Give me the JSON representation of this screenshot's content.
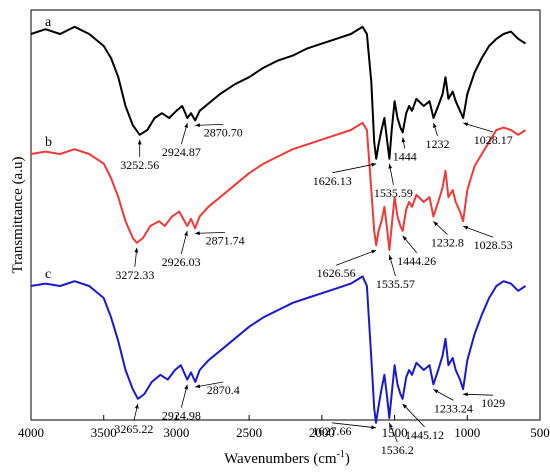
{
  "chart_data": {
    "type": "line",
    "xlabel": "Wavenumbers (cm",
    "xlabel_sup": "-1",
    "xlabel_close": ")",
    "ylabel": "Transmittance (a.u)",
    "xlim": [
      4000,
      500
    ],
    "x_reversed": true,
    "xticks": [
      4000,
      3500,
      3000,
      2500,
      2000,
      1500,
      1000,
      500
    ],
    "yticks": [],
    "grid": false,
    "series": [
      {
        "name": "a",
        "color": "#000000",
        "points": [
          [
            4000,
            0.9
          ],
          [
            3900,
            0.92
          ],
          [
            3800,
            0.9
          ],
          [
            3700,
            0.93
          ],
          [
            3600,
            0.9
          ],
          [
            3500,
            0.85
          ],
          [
            3450,
            0.8
          ],
          [
            3400,
            0.72
          ],
          [
            3350,
            0.6
          ],
          [
            3300,
            0.52
          ],
          [
            3252.56,
            0.48
          ],
          [
            3200,
            0.5
          ],
          [
            3150,
            0.55
          ],
          [
            3100,
            0.57
          ],
          [
            3050,
            0.55
          ],
          [
            3000,
            0.58
          ],
          [
            2960,
            0.6
          ],
          [
            2924.87,
            0.55
          ],
          [
            2900,
            0.57
          ],
          [
            2870.7,
            0.54
          ],
          [
            2840,
            0.58
          ],
          [
            2800,
            0.6
          ],
          [
            2700,
            0.65
          ],
          [
            2600,
            0.69
          ],
          [
            2500,
            0.72
          ],
          [
            2400,
            0.76
          ],
          [
            2300,
            0.79
          ],
          [
            2200,
            0.81
          ],
          [
            2100,
            0.84
          ],
          [
            2000,
            0.86
          ],
          [
            1900,
            0.88
          ],
          [
            1800,
            0.9
          ],
          [
            1720,
            0.93
          ],
          [
            1690,
            0.9
          ],
          [
            1660,
            0.7
          ],
          [
            1640,
            0.45
          ],
          [
            1626.13,
            0.38
          ],
          [
            1610,
            0.44
          ],
          [
            1590,
            0.5
          ],
          [
            1570,
            0.55
          ],
          [
            1550,
            0.45
          ],
          [
            1535.59,
            0.38
          ],
          [
            1520,
            0.5
          ],
          [
            1500,
            0.62
          ],
          [
            1480,
            0.55
          ],
          [
            1460,
            0.51
          ],
          [
            1444,
            0.49
          ],
          [
            1420,
            0.57
          ],
          [
            1400,
            0.6
          ],
          [
            1380,
            0.58
          ],
          [
            1350,
            0.63
          ],
          [
            1300,
            0.6
          ],
          [
            1260,
            0.62
          ],
          [
            1232,
            0.55
          ],
          [
            1200,
            0.6
          ],
          [
            1170,
            0.65
          ],
          [
            1150,
            0.72
          ],
          [
            1130,
            0.63
          ],
          [
            1100,
            0.66
          ],
          [
            1080,
            0.62
          ],
          [
            1050,
            0.58
          ],
          [
            1028.17,
            0.55
          ],
          [
            1000,
            0.65
          ],
          [
            950,
            0.74
          ],
          [
            900,
            0.8
          ],
          [
            850,
            0.85
          ],
          [
            800,
            0.88
          ],
          [
            750,
            0.9
          ],
          [
            700,
            0.91
          ],
          [
            650,
            0.88
          ],
          [
            600,
            0.86
          ]
        ]
      },
      {
        "name": "b",
        "color": "#ee3a3a",
        "points": [
          [
            4000,
            0.4
          ],
          [
            3900,
            0.41
          ],
          [
            3800,
            0.4
          ],
          [
            3700,
            0.42
          ],
          [
            3600,
            0.4
          ],
          [
            3500,
            0.36
          ],
          [
            3450,
            0.3
          ],
          [
            3400,
            0.22
          ],
          [
            3350,
            0.12
          ],
          [
            3300,
            0.05
          ],
          [
            3272.33,
            0.03
          ],
          [
            3230,
            0.05
          ],
          [
            3180,
            0.1
          ],
          [
            3120,
            0.12
          ],
          [
            3080,
            0.1
          ],
          [
            3030,
            0.14
          ],
          [
            2980,
            0.16
          ],
          [
            2926.03,
            0.1
          ],
          [
            2900,
            0.13
          ],
          [
            2871.74,
            0.09
          ],
          [
            2840,
            0.14
          ],
          [
            2780,
            0.18
          ],
          [
            2700,
            0.22
          ],
          [
            2600,
            0.27
          ],
          [
            2500,
            0.32
          ],
          [
            2400,
            0.36
          ],
          [
            2300,
            0.39
          ],
          [
            2200,
            0.42
          ],
          [
            2100,
            0.44
          ],
          [
            2000,
            0.46
          ],
          [
            1900,
            0.48
          ],
          [
            1800,
            0.5
          ],
          [
            1720,
            0.53
          ],
          [
            1690,
            0.5
          ],
          [
            1660,
            0.25
          ],
          [
            1640,
            0.08
          ],
          [
            1626.56,
            0.02
          ],
          [
            1610,
            0.08
          ],
          [
            1590,
            0.12
          ],
          [
            1570,
            0.18
          ],
          [
            1550,
            0.08
          ],
          [
            1535.57,
            0.0
          ],
          [
            1520,
            0.1
          ],
          [
            1500,
            0.22
          ],
          [
            1480,
            0.14
          ],
          [
            1460,
            0.1
          ],
          [
            1444.26,
            0.08
          ],
          [
            1420,
            0.17
          ],
          [
            1400,
            0.2
          ],
          [
            1380,
            0.18
          ],
          [
            1350,
            0.23
          ],
          [
            1300,
            0.2
          ],
          [
            1260,
            0.22
          ],
          [
            1232.8,
            0.14
          ],
          [
            1200,
            0.2
          ],
          [
            1170,
            0.26
          ],
          [
            1150,
            0.33
          ],
          [
            1130,
            0.22
          ],
          [
            1100,
            0.25
          ],
          [
            1080,
            0.2
          ],
          [
            1050,
            0.16
          ],
          [
            1028.53,
            0.12
          ],
          [
            1000,
            0.25
          ],
          [
            950,
            0.35
          ],
          [
            900,
            0.4
          ],
          [
            850,
            0.45
          ],
          [
            800,
            0.5
          ],
          [
            750,
            0.51
          ],
          [
            700,
            0.5
          ],
          [
            650,
            0.48
          ],
          [
            600,
            0.5
          ]
        ]
      },
      {
        "name": "c",
        "color": "#1a1acc",
        "points": [
          [
            4000,
            -0.15
          ],
          [
            3900,
            -0.14
          ],
          [
            3800,
            -0.15
          ],
          [
            3700,
            -0.13
          ],
          [
            3600,
            -0.15
          ],
          [
            3500,
            -0.2
          ],
          [
            3450,
            -0.28
          ],
          [
            3400,
            -0.38
          ],
          [
            3350,
            -0.5
          ],
          [
            3300,
            -0.58
          ],
          [
            3265.22,
            -0.62
          ],
          [
            3220,
            -0.6
          ],
          [
            3170,
            -0.55
          ],
          [
            3110,
            -0.52
          ],
          [
            3060,
            -0.54
          ],
          [
            3010,
            -0.5
          ],
          [
            2970,
            -0.48
          ],
          [
            2924.98,
            -0.54
          ],
          [
            2900,
            -0.51
          ],
          [
            2870.4,
            -0.55
          ],
          [
            2840,
            -0.5
          ],
          [
            2780,
            -0.46
          ],
          [
            2700,
            -0.42
          ],
          [
            2600,
            -0.37
          ],
          [
            2500,
            -0.32
          ],
          [
            2400,
            -0.28
          ],
          [
            2300,
            -0.25
          ],
          [
            2200,
            -0.22
          ],
          [
            2100,
            -0.2
          ],
          [
            2000,
            -0.18
          ],
          [
            1900,
            -0.16
          ],
          [
            1800,
            -0.14
          ],
          [
            1720,
            -0.11
          ],
          [
            1690,
            -0.15
          ],
          [
            1660,
            -0.45
          ],
          [
            1640,
            -0.66
          ],
          [
            1627.66,
            -0.72
          ],
          [
            1610,
            -0.65
          ],
          [
            1590,
            -0.58
          ],
          [
            1570,
            -0.52
          ],
          [
            1550,
            -0.62
          ],
          [
            1536.2,
            -0.7
          ],
          [
            1520,
            -0.6
          ],
          [
            1500,
            -0.48
          ],
          [
            1480,
            -0.56
          ],
          [
            1460,
            -0.6
          ],
          [
            1445.12,
            -0.62
          ],
          [
            1420,
            -0.53
          ],
          [
            1400,
            -0.5
          ],
          [
            1380,
            -0.52
          ],
          [
            1350,
            -0.47
          ],
          [
            1300,
            -0.5
          ],
          [
            1260,
            -0.48
          ],
          [
            1233.24,
            -0.56
          ],
          [
            1200,
            -0.5
          ],
          [
            1170,
            -0.44
          ],
          [
            1150,
            -0.37
          ],
          [
            1130,
            -0.48
          ],
          [
            1100,
            -0.45
          ],
          [
            1080,
            -0.5
          ],
          [
            1050,
            -0.54
          ],
          [
            1029,
            -0.58
          ],
          [
            1000,
            -0.46
          ],
          [
            950,
            -0.35
          ],
          [
            900,
            -0.27
          ],
          [
            850,
            -0.2
          ],
          [
            800,
            -0.15
          ],
          [
            750,
            -0.13
          ],
          [
            700,
            -0.14
          ],
          [
            650,
            -0.17
          ],
          [
            600,
            -0.15
          ]
        ]
      }
    ],
    "annotations": [
      {
        "series": "a",
        "text": "3252.56",
        "x": 3252.56
      },
      {
        "series": "a",
        "text": "2924.87",
        "x": 2924.87
      },
      {
        "series": "a",
        "text": "2870.70",
        "x": 2870.7
      },
      {
        "series": "a",
        "text": "1626.13",
        "x": 1626.13
      },
      {
        "series": "a",
        "text": "1535.59",
        "x": 1535.59
      },
      {
        "series": "a",
        "text": "1444",
        "x": 1444
      },
      {
        "series": "a",
        "text": "1232",
        "x": 1232
      },
      {
        "series": "a",
        "text": "1028.17",
        "x": 1028.17
      },
      {
        "series": "b",
        "text": "3272.33",
        "x": 3272.33
      },
      {
        "series": "b",
        "text": "2926.03",
        "x": 2926.03
      },
      {
        "series": "b",
        "text": "2871.74",
        "x": 2871.74
      },
      {
        "series": "b",
        "text": "1626.56",
        "x": 1626.56
      },
      {
        "series": "b",
        "text": "1535.57",
        "x": 1535.57
      },
      {
        "series": "b",
        "text": "1444.26",
        "x": 1444.26
      },
      {
        "series": "b",
        "text": "1232.8",
        "x": 1232.8
      },
      {
        "series": "b",
        "text": "1028.53",
        "x": 1028.53
      },
      {
        "series": "c",
        "text": "3265.22",
        "x": 3265.22
      },
      {
        "series": "c",
        "text": "2924.98",
        "x": 2924.98
      },
      {
        "series": "c",
        "text": "2870.4",
        "x": 2870.4
      },
      {
        "series": "c",
        "text": "1627.66",
        "x": 1627.66
      },
      {
        "series": "c",
        "text": "1536.2",
        "x": 1536.2
      },
      {
        "series": "c",
        "text": "1445.12",
        "x": 1445.12
      },
      {
        "series": "c",
        "text": "1233.24",
        "x": 1233.24
      },
      {
        "series": "c",
        "text": "1029",
        "x": 1029
      }
    ]
  }
}
